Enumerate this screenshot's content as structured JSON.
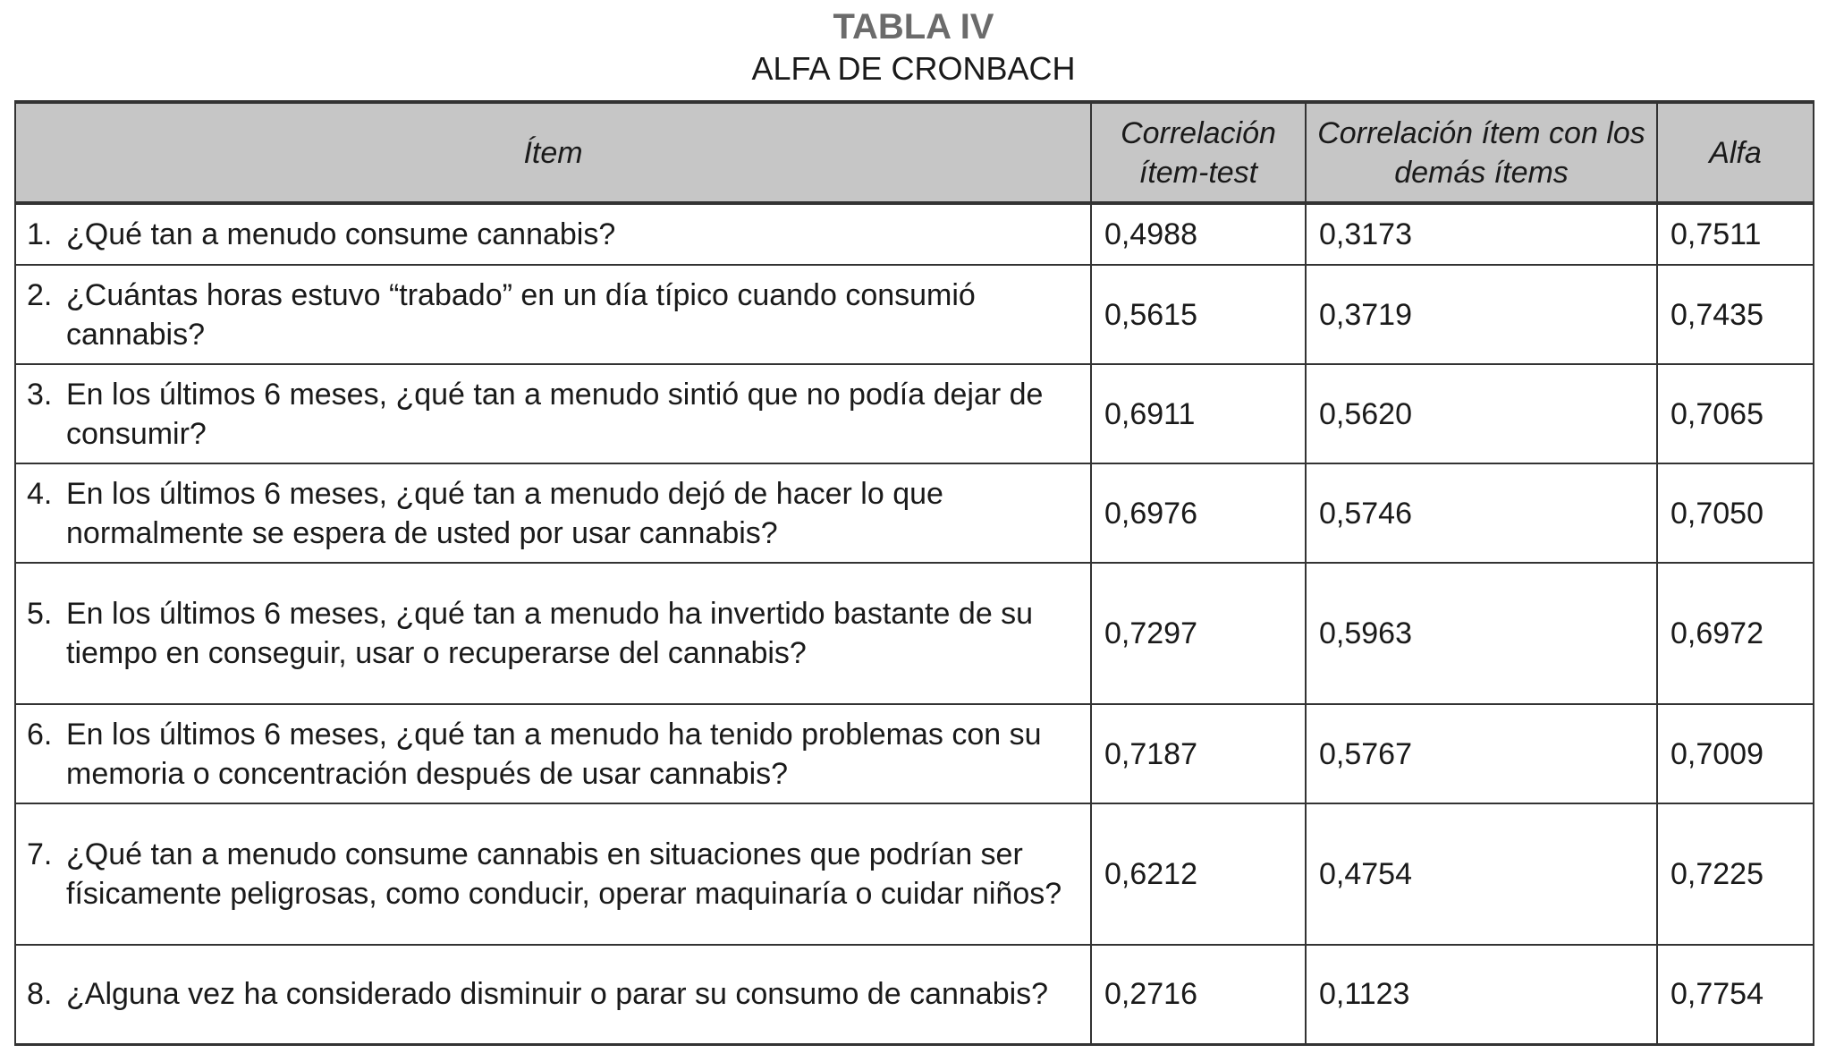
{
  "title": "TABLA IV",
  "subtitle": "ALFA DE CRONBACH",
  "headers": [
    "Ítem",
    "Correlación ítem-test",
    "Correlación ítem con los demás ítems",
    "Alfa"
  ],
  "rows": [
    {
      "n": "1.",
      "item": "¿Qué tan a menudo consume cannabis?",
      "r_it": "0,4988",
      "r_rest": "0,3173",
      "alfa": "0,7511"
    },
    {
      "n": "2.",
      "item": "¿Cuántas horas estuvo “trabado” en un día típico cuando consumió cannabis?",
      "r_it": "0,5615",
      "r_rest": "0,3719",
      "alfa": "0,7435"
    },
    {
      "n": "3.",
      "item": "En los últimos 6 meses, ¿qué tan a menudo sintió que no podía dejar de consumir?",
      "r_it": "0,6911",
      "r_rest": "0,5620",
      "alfa": "0,7065"
    },
    {
      "n": "4.",
      "item": "En los últimos 6 meses, ¿qué tan a menudo dejó de hacer lo que normalmente se espera de usted por usar cannabis?",
      "r_it": "0,6976",
      "r_rest": "0,5746",
      "alfa": "0,7050"
    },
    {
      "n": "5.",
      "item": "En los últimos 6 meses, ¿qué tan a menudo ha invertido bastante de su tiempo en conseguir, usar o recuperarse del cannabis?",
      "r_it": "0,7297",
      "r_rest": "0,5963",
      "alfa": "0,6972"
    },
    {
      "n": "6.",
      "item": "En los últimos 6 meses, ¿qué tan a menudo ha tenido problemas con su memoria o concentración después de usar cannabis?",
      "r_it": "0,7187",
      "r_rest": "0,5767",
      "alfa": "0,7009"
    },
    {
      "n": "7.",
      "item": "¿Qué tan a menudo consume cannabis en situaciones que podrían ser físicamente peligrosas, como conducir, operar maquinaría o cuidar niños?",
      "r_it": "0,6212",
      "r_rest": "0,4754",
      "alfa": "0,7225"
    },
    {
      "n": "8.",
      "item": "¿Alguna vez ha considerado disminuir o parar su consumo de cannabis?",
      "r_it": "0,2716",
      "r_rest": "0,1123",
      "alfa": "0,7754"
    }
  ]
}
